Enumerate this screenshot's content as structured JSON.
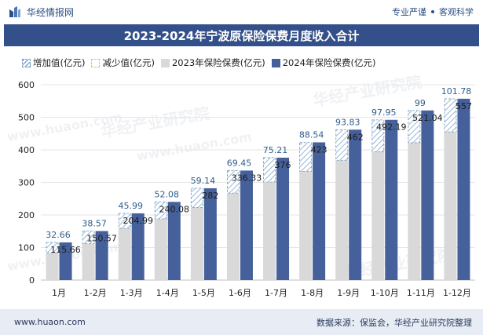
{
  "header": {
    "brand": "华经情报网",
    "slogan_left": "专业严谨",
    "slogan_right": "客观科学"
  },
  "title": "2023-2024年宁波原保险保费月度收入合计",
  "legend": [
    {
      "key": "increase",
      "label": "增加值(亿元)"
    },
    {
      "key": "decrease",
      "label": "减少值(亿元)"
    },
    {
      "key": "s2023",
      "label": "2023年保险保费(亿元)"
    },
    {
      "key": "s2024",
      "label": "2024年保险保费(亿元)"
    }
  ],
  "colors": {
    "title_bg": "#33508a",
    "series_2024": "#45609a",
    "series_2023": "#d9d9d9",
    "increase_stroke": "#7fa4cc",
    "increase_label": "#2e5d8e",
    "decrease_stroke": "#f0c060",
    "footer_bg": "#e8edf5"
  },
  "chart_data": {
    "type": "bar",
    "categories": [
      "1月",
      "1-2月",
      "1-3月",
      "1-4月",
      "1-5月",
      "1-6月",
      "1-7月",
      "1-8月",
      "1-9月",
      "1-10月",
      "1-11月",
      "1-12月"
    ],
    "series": [
      {
        "name": "2023年保险保费(亿元)",
        "values": [
          83,
          112,
          159,
          188,
          223,
          267,
          301,
          334,
          368,
          394,
          422,
          455
        ]
      },
      {
        "name": "2024年保险保费(亿元)",
        "values": [
          115.66,
          150.57,
          204.99,
          240.08,
          282,
          336.33,
          376,
          423,
          462,
          492.19,
          521.04,
          557
        ]
      },
      {
        "name": "增加值(亿元)",
        "values": [
          32.66,
          38.57,
          45.99,
          52.08,
          59.14,
          69.45,
          75.21,
          88.54,
          93.83,
          97.95,
          99,
          101.78
        ]
      }
    ],
    "ylim": [
      0,
      600
    ],
    "yticks": [
      0,
      100,
      200,
      300,
      400,
      500,
      600
    ],
    "legend_position": "top"
  },
  "watermarks": [
    "华经产业研究院",
    "www.huaon.com"
  ],
  "footer": {
    "website": "www.huaon.com",
    "source": "数据来源：保监会，华经产业研究院整理"
  }
}
